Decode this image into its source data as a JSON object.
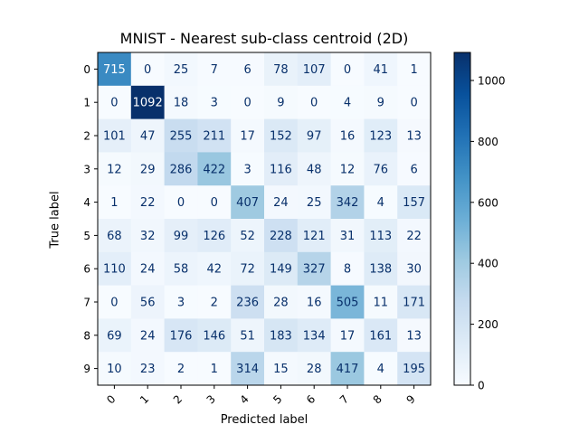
{
  "chart_data": {
    "type": "heatmap",
    "title": "MNIST - Nearest sub-class centroid (2D)",
    "xlabel": "Predicted label",
    "ylabel": "True label",
    "x_categories": [
      "0",
      "1",
      "2",
      "3",
      "4",
      "5",
      "6",
      "7",
      "8",
      "9"
    ],
    "y_categories": [
      "0",
      "1",
      "2",
      "3",
      "4",
      "5",
      "6",
      "7",
      "8",
      "9"
    ],
    "matrix": [
      [
        715,
        0,
        25,
        7,
        6,
        78,
        107,
        0,
        41,
        1
      ],
      [
        0,
        1092,
        18,
        3,
        0,
        9,
        0,
        4,
        9,
        0
      ],
      [
        101,
        47,
        255,
        211,
        17,
        152,
        97,
        16,
        123,
        13
      ],
      [
        12,
        29,
        286,
        422,
        3,
        116,
        48,
        12,
        76,
        6
      ],
      [
        1,
        22,
        0,
        0,
        407,
        24,
        25,
        342,
        4,
        157
      ],
      [
        68,
        32,
        99,
        126,
        52,
        228,
        121,
        31,
        113,
        22
      ],
      [
        110,
        24,
        58,
        42,
        72,
        149,
        327,
        8,
        138,
        30
      ],
      [
        0,
        56,
        3,
        2,
        236,
        28,
        16,
        505,
        11,
        171
      ],
      [
        69,
        24,
        176,
        146,
        51,
        183,
        134,
        17,
        161,
        13
      ],
      [
        10,
        23,
        2,
        1,
        314,
        15,
        28,
        417,
        4,
        195
      ]
    ],
    "colormap": "Blues",
    "color_range": [
      0,
      1092
    ],
    "colorbar_ticks": [
      0,
      200,
      400,
      600,
      800,
      1000
    ],
    "x_tick_rotation": 45,
    "grid": false,
    "text_colors": {
      "light": "#ffffff",
      "dark": "#08306b"
    }
  }
}
